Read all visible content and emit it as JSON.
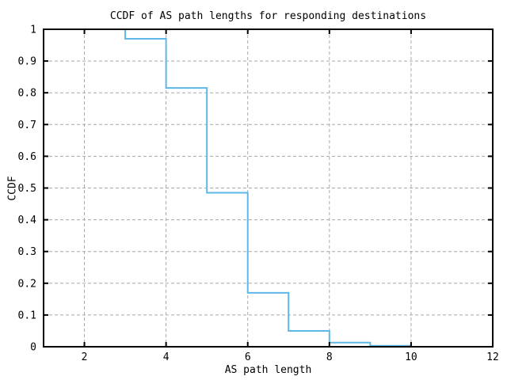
{
  "chart_data": {
    "type": "step",
    "title": "CCDF of AS path lengths for responding destinations",
    "xlabel": "AS path length",
    "ylabel": "CCDF",
    "x_axis": {
      "min": 1,
      "max": 12,
      "ticks": [
        2,
        4,
        6,
        8,
        10,
        12
      ],
      "tick_labels": [
        "2",
        "4",
        "6",
        "8",
        "10",
        "12"
      ]
    },
    "y_axis": {
      "min": 0,
      "max": 1,
      "ticks": [
        0,
        0.1,
        0.2,
        0.3,
        0.4,
        0.5,
        0.6,
        0.7,
        0.8,
        0.9,
        1
      ],
      "tick_labels": [
        "0",
        "0.1",
        "0.2",
        "0.3",
        "0.4",
        "0.5",
        "0.6",
        "0.7",
        "0.8",
        "0.9",
        "1"
      ]
    },
    "grid": {
      "style": "dashed",
      "color": "#a8a8a8",
      "x_lines": [
        2,
        4,
        6,
        8,
        10
      ],
      "y_lines": [
        0.1,
        0.2,
        0.3,
        0.4,
        0.5,
        0.6,
        0.7,
        0.8,
        0.9
      ]
    },
    "series": [
      {
        "name": "ccdf-step",
        "color": "#5db7e8",
        "step_edges": [
          2,
          3,
          4,
          5,
          6,
          7,
          8,
          9,
          10
        ],
        "interval_values": [
          1.0,
          0.97,
          0.815,
          0.485,
          0.17,
          0.05,
          0.013,
          0.003
        ],
        "end_value": 0
      }
    ],
    "border_color": "#000000",
    "background": "#ffffff",
    "legend": "none"
  }
}
